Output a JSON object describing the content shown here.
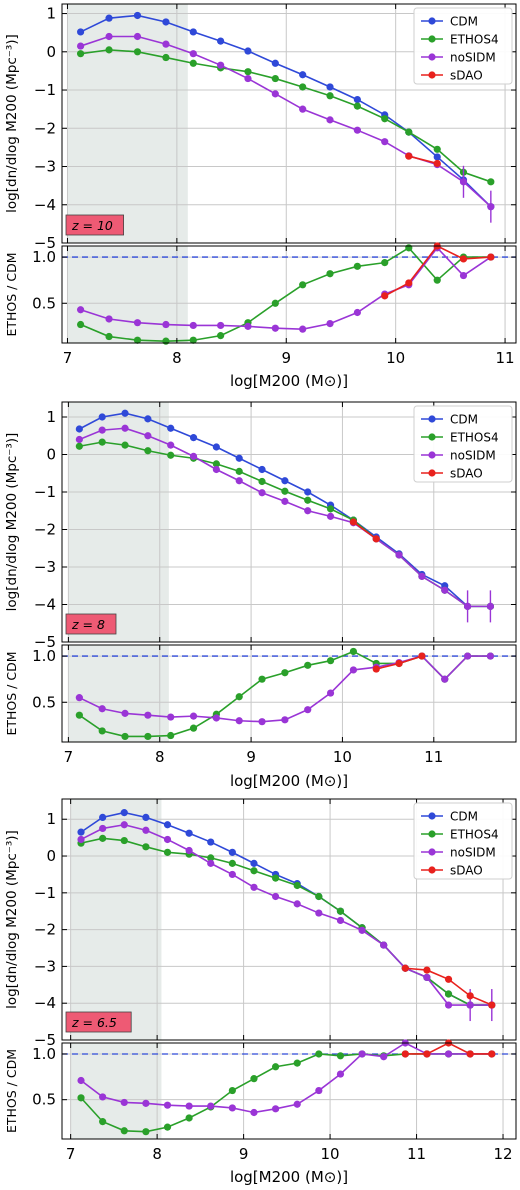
{
  "figure": {
    "colors": {
      "CDM": "#2f49d8",
      "ETHOS4": "#2aa02a",
      "noSIDM": "#9a35d6",
      "sDAO": "#e8211d",
      "shade": "#e6ebe9",
      "zbox": "#ee5a74"
    },
    "legend": [
      "CDM",
      "ETHOS4",
      "noSIDM",
      "sDAO"
    ],
    "ratio_ref_line": {
      "value": 1.0,
      "color": "#2f49d8",
      "style": "dashed"
    }
  },
  "chart_data": [
    {
      "type": "line",
      "redshift_label": "z = 10",
      "shaded_region_x": [
        7.0,
        8.1
      ],
      "xlabel": "log[M200 (M⊙)]",
      "xlim": [
        6.95,
        11.1
      ],
      "xticks": [
        7,
        8,
        9,
        10,
        11
      ],
      "top": {
        "ylabel": "log[dn/dlog M200 (Mpc⁻³)]",
        "ylim": [
          -5,
          1.25
        ],
        "yticks": [
          1,
          0,
          -1,
          -2,
          -3,
          -4,
          -5
        ],
        "legend_position": "top-right",
        "series": [
          {
            "name": "CDM",
            "x": [
              7.12,
              7.38,
              7.64,
              7.9,
              8.15,
              8.4,
              8.65,
              8.9,
              9.15,
              9.4,
              9.65,
              9.9,
              10.12,
              10.38,
              10.62,
              10.87
            ],
            "y": [
              0.52,
              0.88,
              0.95,
              0.78,
              0.52,
              0.28,
              0.02,
              -0.3,
              -0.6,
              -0.92,
              -1.25,
              -1.65,
              -2.1,
              -2.75,
              -3.35,
              -4.05
            ]
          },
          {
            "name": "ETHOS4",
            "x": [
              7.12,
              7.38,
              7.64,
              7.9,
              8.15,
              8.4,
              8.65,
              8.9,
              9.15,
              9.4,
              9.65,
              9.9,
              10.12,
              10.38,
              10.62,
              10.87
            ],
            "y": [
              -0.05,
              0.05,
              0.0,
              -0.15,
              -0.3,
              -0.42,
              -0.52,
              -0.7,
              -0.92,
              -1.15,
              -1.42,
              -1.75,
              -2.1,
              -2.55,
              -3.15,
              -3.4
            ]
          },
          {
            "name": "noSIDM",
            "x": [
              7.12,
              7.38,
              7.64,
              7.9,
              8.15,
              8.4,
              8.65,
              8.9,
              9.15,
              9.4,
              9.65,
              9.9,
              10.12,
              10.38,
              10.62,
              10.87
            ],
            "y": [
              0.15,
              0.4,
              0.4,
              0.2,
              -0.05,
              -0.35,
              -0.7,
              -1.1,
              -1.5,
              -1.78,
              -2.05,
              -2.35,
              -2.72,
              -2.95,
              -3.4,
              -4.05
            ]
          },
          {
            "name": "sDAO",
            "x": [
              10.12,
              10.38
            ],
            "y": [
              -2.73,
              -2.92
            ]
          }
        ]
      },
      "bottom": {
        "ylabel": "ETHOS / CDM",
        "ylim": [
          0.07,
          1.12
        ],
        "yticks": [
          1.0,
          0.5
        ],
        "ytick_labels": [
          "1.0",
          "0.5"
        ],
        "series": [
          {
            "name": "ETHOS4",
            "x": [
              7.12,
              7.38,
              7.64,
              7.9,
              8.15,
              8.4,
              8.65,
              8.9,
              9.15,
              9.4,
              9.65,
              9.9,
              10.12,
              10.38,
              10.62,
              10.87
            ],
            "y": [
              0.27,
              0.14,
              0.1,
              0.09,
              0.1,
              0.15,
              0.29,
              0.5,
              0.7,
              0.82,
              0.9,
              0.94,
              1.1,
              0.75,
              1.0,
              1.0
            ]
          },
          {
            "name": "noSIDM",
            "x": [
              7.12,
              7.38,
              7.64,
              7.9,
              8.15,
              8.4,
              8.65,
              8.9,
              9.15,
              9.4,
              9.65,
              9.9,
              10.12,
              10.38,
              10.62,
              10.87
            ],
            "y": [
              0.43,
              0.33,
              0.29,
              0.27,
              0.26,
              0.26,
              0.25,
              0.23,
              0.22,
              0.28,
              0.4,
              0.6,
              0.7,
              1.1,
              0.8,
              1.0
            ]
          },
          {
            "name": "sDAO",
            "x": [
              9.9,
              10.12,
              10.38,
              10.62,
              10.87
            ],
            "y": [
              0.58,
              0.72,
              1.12,
              0.98,
              1.0
            ]
          }
        ]
      }
    },
    {
      "type": "line",
      "redshift_label": "z = 8",
      "shaded_region_x": [
        7.0,
        8.1
      ],
      "xlabel": "log[M200 (M⊙)]",
      "xlim": [
        6.93,
        11.9
      ],
      "xticks": [
        7,
        8,
        9,
        10,
        11
      ],
      "top": {
        "ylabel": "log[dn/dlog M200 (Mpc⁻³)]",
        "ylim": [
          -5,
          1.4
        ],
        "yticks": [
          1,
          0,
          -1,
          -2,
          -3,
          -4,
          -5
        ],
        "legend_position": "top-right",
        "series": [
          {
            "name": "CDM",
            "x": [
              7.12,
              7.37,
              7.62,
              7.87,
              8.12,
              8.37,
              8.62,
              8.87,
              9.12,
              9.37,
              9.62,
              9.87,
              10.12,
              10.37,
              10.62,
              10.87,
              11.12,
              11.37,
              11.62
            ],
            "y": [
              0.68,
              1.0,
              1.1,
              0.95,
              0.7,
              0.45,
              0.2,
              -0.1,
              -0.4,
              -0.7,
              -1.0,
              -1.35,
              -1.75,
              -2.2,
              -2.65,
              -3.2,
              -3.5,
              -4.05,
              -4.05
            ]
          },
          {
            "name": "ETHOS4",
            "x": [
              7.12,
              7.37,
              7.62,
              7.87,
              8.12,
              8.37,
              8.62,
              8.87,
              9.12,
              9.37,
              9.62,
              9.87,
              10.12,
              10.37,
              10.62,
              10.87,
              11.12,
              11.37,
              11.62
            ],
            "y": [
              0.22,
              0.33,
              0.25,
              0.1,
              -0.02,
              -0.1,
              -0.25,
              -0.45,
              -0.72,
              -0.98,
              -1.22,
              -1.45,
              -1.75,
              -2.25,
              -2.68,
              -3.25,
              -3.62,
              -4.05,
              -4.05
            ]
          },
          {
            "name": "noSIDM",
            "x": [
              7.12,
              7.37,
              7.62,
              7.87,
              8.12,
              8.37,
              8.62,
              8.87,
              9.12,
              9.37,
              9.62,
              9.87,
              10.12,
              10.37,
              10.62,
              10.87,
              11.12,
              11.37,
              11.62
            ],
            "y": [
              0.4,
              0.65,
              0.7,
              0.5,
              0.25,
              -0.05,
              -0.4,
              -0.7,
              -1.02,
              -1.25,
              -1.5,
              -1.65,
              -1.82,
              -2.25,
              -2.68,
              -3.25,
              -3.62,
              -4.05,
              -4.05
            ]
          },
          {
            "name": "sDAO",
            "x": [
              10.12,
              10.37
            ],
            "y": [
              -1.8,
              -2.25
            ]
          }
        ]
      },
      "bottom": {
        "ylabel": "ETHOS / CDM",
        "ylim": [
          0.07,
          1.12
        ],
        "yticks": [
          1.0,
          0.5
        ],
        "ytick_labels": [
          "1.0",
          "0.5"
        ],
        "series": [
          {
            "name": "ETHOS4",
            "x": [
              7.12,
              7.37,
              7.62,
              7.87,
              8.12,
              8.37,
              8.62,
              8.87,
              9.12,
              9.37,
              9.62,
              9.87,
              10.12,
              10.37,
              10.62,
              10.87,
              11.12,
              11.37,
              11.62
            ],
            "y": [
              0.36,
              0.19,
              0.13,
              0.13,
              0.14,
              0.22,
              0.37,
              0.56,
              0.75,
              0.82,
              0.9,
              0.95,
              1.05,
              0.92,
              0.92,
              1.0,
              0.75,
              1.0,
              1.0
            ]
          },
          {
            "name": "noSIDM",
            "x": [
              7.12,
              7.37,
              7.62,
              7.87,
              8.12,
              8.37,
              8.62,
              8.87,
              9.12,
              9.37,
              9.62,
              9.87,
              10.12,
              10.37,
              10.62,
              10.87,
              11.12,
              11.37,
              11.62
            ],
            "y": [
              0.55,
              0.43,
              0.38,
              0.36,
              0.34,
              0.35,
              0.33,
              0.3,
              0.29,
              0.31,
              0.42,
              0.6,
              0.85,
              0.88,
              0.93,
              1.0,
              0.75,
              1.0,
              1.0
            ]
          },
          {
            "name": "sDAO",
            "x": [
              10.37,
              10.62,
              10.87
            ],
            "y": [
              0.86,
              0.92,
              1.0
            ]
          }
        ]
      }
    },
    {
      "type": "line",
      "redshift_label": "z = 6.5",
      "shaded_region_x": [
        7.0,
        8.05
      ],
      "xlabel": "log[M200 (M⊙)]",
      "xlim": [
        6.9,
        12.15
      ],
      "xticks": [
        7,
        8,
        9,
        10,
        11,
        12
      ],
      "top": {
        "ylabel": "log[dn/dlog M200 (Mpc⁻³)]",
        "ylim": [
          -5,
          1.55
        ],
        "yticks": [
          1,
          0,
          -1,
          -2,
          -3,
          -4,
          -5
        ],
        "legend_position": "top-right",
        "series": [
          {
            "name": "CDM",
            "x": [
              7.12,
              7.37,
              7.62,
              7.87,
              8.12,
              8.37,
              8.62,
              8.87,
              9.12,
              9.37,
              9.62,
              9.87,
              10.12,
              10.37,
              10.62,
              10.87,
              11.12,
              11.37,
              11.62,
              11.87
            ],
            "y": [
              0.65,
              1.05,
              1.18,
              1.05,
              0.85,
              0.62,
              0.38,
              0.1,
              -0.2,
              -0.5,
              -0.75,
              -1.1,
              -1.5,
              -1.95,
              -2.42,
              -3.05,
              -3.3,
              -3.75,
              -4.05,
              -4.05
            ]
          },
          {
            "name": "ETHOS4",
            "x": [
              7.12,
              7.37,
              7.62,
              7.87,
              8.12,
              8.37,
              8.62,
              8.87,
              9.12,
              9.37,
              9.62,
              9.87,
              10.12,
              10.37,
              10.62,
              10.87,
              11.12,
              11.37,
              11.62,
              11.87
            ],
            "y": [
              0.35,
              0.48,
              0.42,
              0.25,
              0.1,
              0.05,
              -0.05,
              -0.2,
              -0.4,
              -0.6,
              -0.8,
              -1.1,
              -1.5,
              -1.95,
              -2.42,
              -3.05,
              -3.3,
              -3.75,
              -4.05,
              -4.05
            ]
          },
          {
            "name": "noSIDM",
            "x": [
              7.12,
              7.37,
              7.62,
              7.87,
              8.12,
              8.37,
              8.62,
              8.87,
              9.12,
              9.37,
              9.62,
              9.87,
              10.12,
              10.37,
              10.62,
              10.87,
              11.12,
              11.37,
              11.62,
              11.87
            ],
            "y": [
              0.45,
              0.75,
              0.85,
              0.7,
              0.45,
              0.15,
              -0.2,
              -0.5,
              -0.85,
              -1.1,
              -1.3,
              -1.55,
              -1.75,
              -2.02,
              -2.42,
              -3.05,
              -3.3,
              -4.05,
              -4.05,
              -4.05
            ]
          },
          {
            "name": "sDAO",
            "x": [
              10.87,
              11.12,
              11.37,
              11.62,
              11.87
            ],
            "y": [
              -3.05,
              -3.1,
              -3.35,
              -3.8,
              -4.05
            ]
          }
        ]
      },
      "bottom": {
        "ylabel": "ETHOS / CDM",
        "ylim": [
          0.07,
          1.12
        ],
        "yticks": [
          1.0,
          0.5
        ],
        "ytick_labels": [
          "1.0",
          "0.5"
        ],
        "series": [
          {
            "name": "ETHOS4",
            "x": [
              7.12,
              7.37,
              7.62,
              7.87,
              8.12,
              8.37,
              8.62,
              8.87,
              9.12,
              9.37,
              9.62,
              9.87,
              10.12,
              10.37,
              10.62,
              10.87,
              11.12,
              11.37,
              11.62,
              11.87
            ],
            "y": [
              0.52,
              0.26,
              0.16,
              0.15,
              0.2,
              0.3,
              0.42,
              0.6,
              0.73,
              0.86,
              0.9,
              1.0,
              0.98,
              1.0,
              0.98,
              1.0,
              1.0,
              1.0,
              1.0,
              1.0
            ]
          },
          {
            "name": "noSIDM",
            "x": [
              7.12,
              7.37,
              7.62,
              7.87,
              8.12,
              8.37,
              8.62,
              8.87,
              9.12,
              9.37,
              9.62,
              9.87,
              10.12,
              10.37,
              10.62,
              10.87,
              11.12,
              11.37,
              11.62,
              11.87
            ],
            "y": [
              0.71,
              0.53,
              0.47,
              0.46,
              0.44,
              0.43,
              0.43,
              0.41,
              0.36,
              0.4,
              0.45,
              0.6,
              0.78,
              1.0,
              0.97,
              1.12,
              1.0,
              1.0,
              1.0,
              1.0
            ]
          },
          {
            "name": "sDAO",
            "x": [
              10.87,
              11.12,
              11.37,
              11.62,
              11.87
            ],
            "y": [
              1.0,
              1.0,
              1.12,
              1.0,
              1.0
            ]
          }
        ]
      }
    }
  ]
}
